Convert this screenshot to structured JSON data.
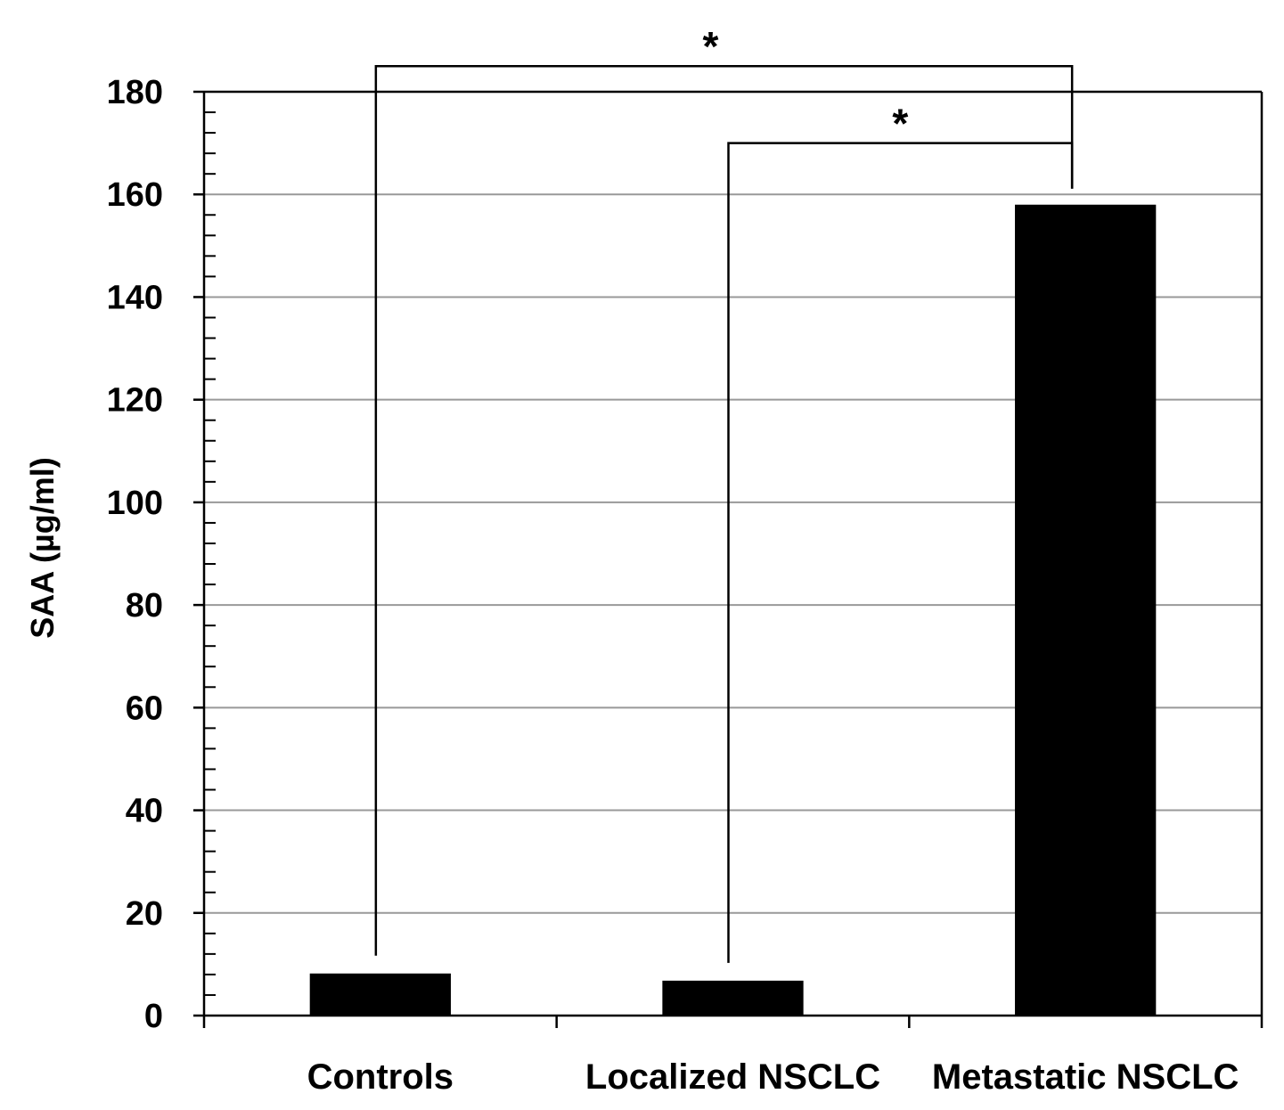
{
  "chart_data": {
    "type": "bar",
    "title": "",
    "xlabel": "",
    "ylabel": "SAA (µg/ml)",
    "categories": [
      "Controls",
      "Localized NSCLC",
      "Metastatic NSCLC"
    ],
    "values": [
      8.2,
      6.8,
      158
    ],
    "ylim": [
      0,
      180
    ],
    "yticks": [
      0,
      20,
      40,
      60,
      80,
      100,
      120,
      140,
      160,
      180
    ],
    "y_minor_step": 4,
    "grid": true,
    "legend": "none",
    "bar_color": "#000000",
    "grid_color": "#999999",
    "significance": [
      {
        "from": "Controls",
        "to": "Metastatic NSCLC",
        "label": "*",
        "bracket_y": 185
      },
      {
        "from": "Localized NSCLC",
        "to": "Metastatic NSCLC",
        "label": "*",
        "bracket_y": 170
      }
    ]
  }
}
